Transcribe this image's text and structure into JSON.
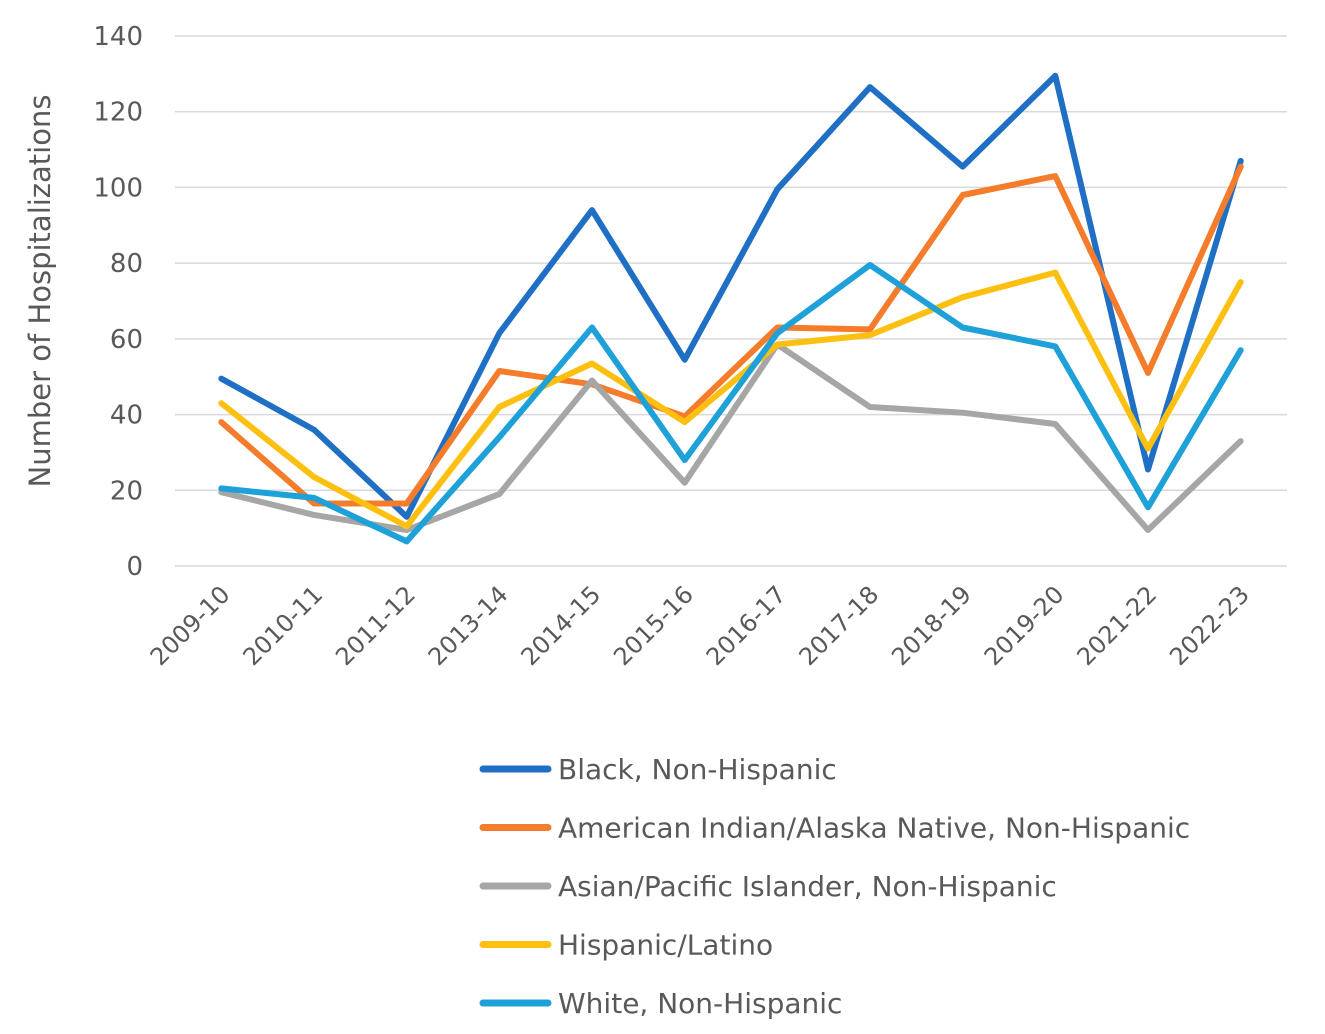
{
  "chart_data": {
    "type": "line",
    "title": "",
    "xlabel": "",
    "ylabel": "Number of Hospitalizations",
    "ylim": [
      0,
      140
    ],
    "yticks": [
      0,
      20,
      40,
      60,
      80,
      100,
      120,
      140
    ],
    "ytick_labels": [
      "0",
      "20",
      "40",
      "60",
      "80",
      "100",
      "120",
      "140"
    ],
    "grid": true,
    "legend_position": "bottom",
    "categories": [
      "2009-10",
      "2010-11",
      "2011-12",
      "2013-14",
      "2014-15",
      "2015-16",
      "2016-17",
      "2017-18",
      "2018-19",
      "2019-20",
      "2021-22",
      "2022-23"
    ],
    "series": [
      {
        "name": "Black, Non-Hispanic",
        "color": "#1f6fc5",
        "values": [
          49.5,
          36,
          13,
          61.5,
          94,
          54.5,
          99.5,
          126.5,
          105.5,
          129.5,
          25.5,
          107
        ]
      },
      {
        "name": "American Indian/Alaska Native, Non-Hispanic",
        "color": "#f47c2a",
        "values": [
          38,
          16.5,
          16.5,
          51.5,
          48,
          39.5,
          63,
          62.5,
          98,
          103,
          51,
          105.5
        ]
      },
      {
        "name": "Asian/Pacific Islander, Non-Hispanic",
        "color": "#a6a6a6",
        "values": [
          19.5,
          13.5,
          9.5,
          19,
          49,
          22,
          58.5,
          42,
          40.5,
          37.5,
          9.5,
          33
        ]
      },
      {
        "name": "Hispanic/Latino",
        "color": "#fdc010",
        "values": [
          43,
          23.5,
          10.5,
          42,
          53.5,
          38,
          58.5,
          61,
          71,
          77.5,
          31,
          75
        ]
      },
      {
        "name": "White, Non-Hispanic",
        "color": "#1ea0d8",
        "values": [
          20.5,
          18,
          6.5,
          34,
          63,
          28,
          61.5,
          79.5,
          63,
          58,
          15.5,
          57
        ]
      }
    ]
  }
}
